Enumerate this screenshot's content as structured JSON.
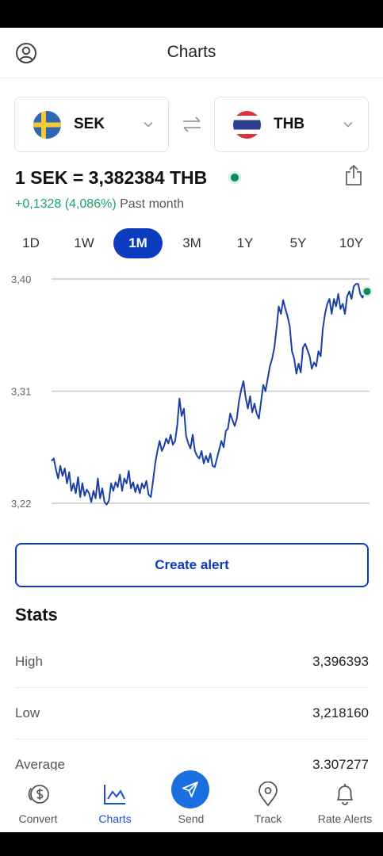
{
  "header": {
    "title": "Charts",
    "profile_icon": "profile-icon"
  },
  "currencies": {
    "from": {
      "code": "SEK",
      "flag": "sweden-flag-icon"
    },
    "to": {
      "code": "THB",
      "flag": "thailand-flag-icon"
    },
    "swap_icon": "swap-arrows-icon"
  },
  "rate": {
    "text": "1 SEK = 3,382384 THB",
    "change": "+0,1328 (4,086%)",
    "period": "Past month",
    "share_icon": "share-icon"
  },
  "ranges": [
    {
      "label": "1D",
      "active": false
    },
    {
      "label": "1W",
      "active": false
    },
    {
      "label": "1M",
      "active": true
    },
    {
      "label": "3M",
      "active": false
    },
    {
      "label": "1Y",
      "active": false
    },
    {
      "label": "5Y",
      "active": false
    },
    {
      "label": "10Y",
      "active": false
    }
  ],
  "chart_data": {
    "type": "line",
    "title": "",
    "xlabel": "",
    "ylabel": "",
    "yticks": [
      "3,40",
      "3,31",
      "3,22"
    ],
    "ytick_values": [
      3.4,
      3.31,
      3.22
    ],
    "ylim": [
      3.22,
      3.4
    ],
    "grid": true,
    "line_color": "#1b3fa6",
    "end_marker_color": "#0e8a5b",
    "series": [
      {
        "values": [
          3.254,
          3.256,
          3.247,
          3.24,
          3.25,
          3.242,
          3.248,
          3.236,
          3.245,
          3.23,
          3.236,
          3.228,
          3.241,
          3.225,
          3.236,
          3.226,
          3.231,
          3.228,
          3.221,
          3.23,
          3.224,
          3.24,
          3.224,
          3.232,
          3.221,
          3.219,
          3.222,
          3.236,
          3.23,
          3.237,
          3.233,
          3.243,
          3.23,
          3.24,
          3.236,
          3.246,
          3.232,
          3.237,
          3.229,
          3.235,
          3.228,
          3.236,
          3.232,
          3.238,
          3.227,
          3.225,
          3.238,
          3.252,
          3.262,
          3.27,
          3.262,
          3.266,
          3.272,
          3.268,
          3.275,
          3.267,
          3.27,
          3.283,
          3.304,
          3.29,
          3.296,
          3.274,
          3.268,
          3.264,
          3.275,
          3.262,
          3.258,
          3.256,
          3.262,
          3.252,
          3.258,
          3.253,
          3.26,
          3.25,
          3.249,
          3.256,
          3.263,
          3.27,
          3.265,
          3.278,
          3.28,
          3.292,
          3.287,
          3.282,
          3.288,
          3.302,
          3.311,
          3.318,
          3.305,
          3.296,
          3.306,
          3.293,
          3.3,
          3.292,
          3.288,
          3.302,
          3.315,
          3.31,
          3.32,
          3.33,
          3.336,
          3.345,
          3.36,
          3.378,
          3.372,
          3.383,
          3.376,
          3.37,
          3.362,
          3.342,
          3.336,
          3.324,
          3.332,
          3.325,
          3.345,
          3.348,
          3.343,
          3.338,
          3.328,
          3.333,
          3.33,
          3.342,
          3.338,
          3.36,
          3.372,
          3.38,
          3.384,
          3.372,
          3.384,
          3.378,
          3.388,
          3.376,
          3.38,
          3.372,
          3.386,
          3.39,
          3.384,
          3.394,
          3.396,
          3.396,
          3.388,
          3.385,
          3.39
        ]
      }
    ]
  },
  "create_alert_label": "Create alert",
  "stats": {
    "title": "Stats",
    "rows": [
      {
        "label": "High",
        "value": "3,396393"
      },
      {
        "label": "Low",
        "value": "3,218160"
      },
      {
        "label": "Average",
        "value": "3.307277"
      }
    ]
  },
  "nav": [
    {
      "label": "Convert",
      "icon": "coins-icon",
      "active": false
    },
    {
      "label": "Charts",
      "icon": "chart-icon",
      "active": true
    },
    {
      "label": "Send",
      "icon": "send-icon",
      "active": false
    },
    {
      "label": "Track",
      "icon": "location-pin-icon",
      "active": false
    },
    {
      "label": "Rate Alerts",
      "icon": "bell-icon",
      "active": false
    }
  ]
}
